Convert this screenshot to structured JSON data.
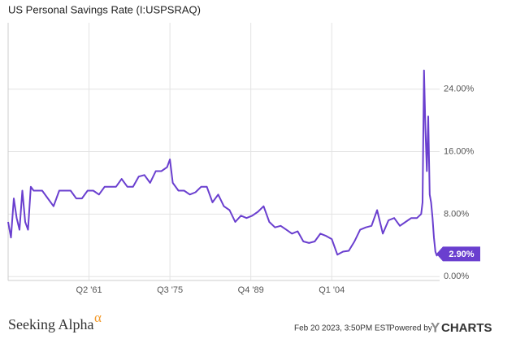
{
  "chart_data": {
    "type": "line",
    "title": "US Personal Savings Rate (I:USPSRAQ)",
    "x": [
      1947,
      1947.5,
      1948,
      1948.5,
      1949,
      1949.5,
      1950,
      1950.5,
      1951,
      1951.5,
      1952,
      1953,
      1954,
      1955,
      1956,
      1957,
      1958,
      1959,
      1960,
      1961,
      1962,
      1963,
      1964,
      1965,
      1966,
      1967,
      1968,
      1969,
      1970,
      1971,
      1972,
      1973,
      1974,
      1975,
      1975.5,
      1976,
      1977,
      1978,
      1979,
      1980,
      1981,
      1982,
      1983,
      1984,
      1985,
      1986,
      1987,
      1988,
      1989,
      1990,
      1991,
      1992,
      1993,
      1994,
      1995,
      1996,
      1997,
      1998,
      1999,
      2000,
      2001,
      2002,
      2003,
      2004,
      2005,
      2006,
      2007,
      2008,
      2009,
      2010,
      2011,
      2012,
      2013,
      2014,
      2015,
      2016,
      2017,
      2018,
      2019,
      2019.75,
      2020,
      2020.25,
      2020.5,
      2020.75,
      2021,
      2021.25,
      2021.5,
      2021.75,
      2022,
      2022.25,
      2022.5,
      2022.75
    ],
    "series": [
      {
        "name": "US Personal Savings Rate",
        "color": "#6a3fcf",
        "values": [
          7,
          5,
          10,
          7.5,
          6,
          11,
          7,
          6,
          11.5,
          11,
          11,
          11,
          10,
          9,
          11,
          11,
          11,
          10,
          10,
          11,
          11,
          10.5,
          11.5,
          11.5,
          11.5,
          12.5,
          11.5,
          11.5,
          12.8,
          13,
          12,
          13.5,
          13.5,
          14,
          15,
          12,
          11,
          11,
          10.5,
          10.8,
          11.5,
          11.5,
          9.5,
          10.5,
          9,
          8.5,
          7,
          7.8,
          7.5,
          7.8,
          8.3,
          9,
          7,
          6.3,
          6.5,
          6,
          5.5,
          5.8,
          4.5,
          4.3,
          4.5,
          5.5,
          5.2,
          4.8,
          2.8,
          3.2,
          3.3,
          4.5,
          6,
          6.3,
          6.5,
          8.5,
          5.5,
          7.2,
          7.5,
          6.5,
          7,
          7.5,
          7.5,
          8,
          9.5,
          26.4,
          19,
          13.5,
          20.5,
          10.5,
          9.5,
          7.5,
          5,
          3.2,
          2.7,
          2.9
        ]
      }
    ],
    "end_label": "2.90%",
    "xlim": [
      1947,
      2023
    ],
    "xticks": [
      {
        "value": 1961.25,
        "label": "Q2 '61"
      },
      {
        "value": 1975.5,
        "label": "Q3 '75"
      },
      {
        "value": 1989.75,
        "label": "Q4 '89"
      },
      {
        "value": 2004,
        "label": "Q1 '04"
      }
    ],
    "ylim": [
      -0.5,
      32.5
    ],
    "yticks": [
      {
        "value": 0,
        "label": "0.00%"
      },
      {
        "value": 8,
        "label": "8.00%"
      },
      {
        "value": 16,
        "label": "16.00%"
      },
      {
        "value": 24,
        "label": "24.00%"
      }
    ],
    "grid": true
  },
  "footer": {
    "brand": "Seeking Alpha",
    "brand_mark": "α",
    "timestamp": "Feb 20 2023, 3:50PM EST.",
    "powered_by": "Powered by",
    "source_y": "Y",
    "source": "CHARTS"
  }
}
